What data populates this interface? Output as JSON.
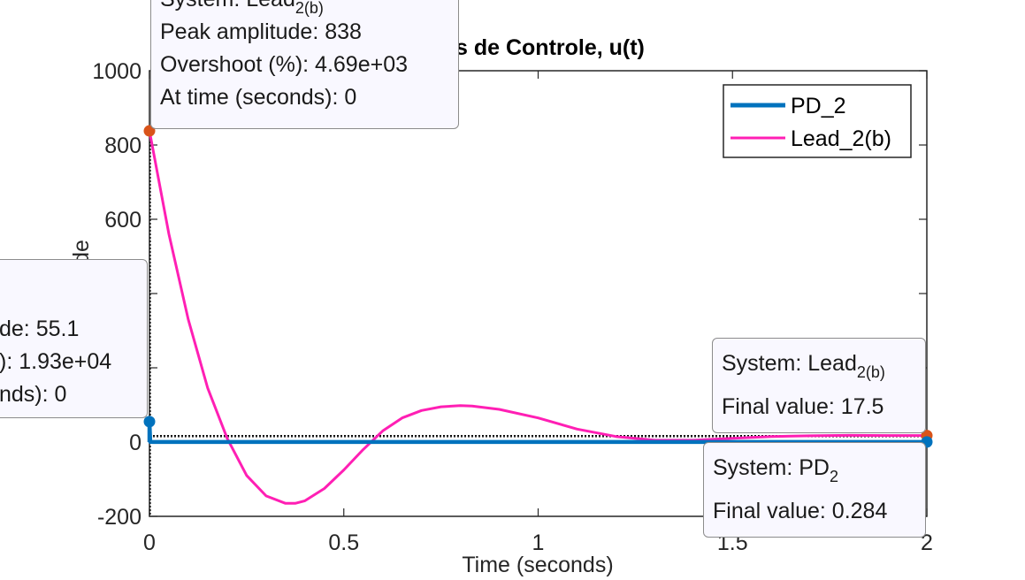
{
  "chart_data": {
    "type": "line",
    "title": "s de Controle, u(t)",
    "xlabel": "Time (seconds)",
    "ylabel": "de",
    "xlim": [
      0,
      2
    ],
    "ylim": [
      -200,
      1000
    ],
    "xticks": [
      0,
      0.5,
      1,
      1.5,
      2
    ],
    "xtick_labels": [
      "0",
      "0.5",
      "1",
      "1.5",
      "2"
    ],
    "yticks": [
      -200,
      0,
      200,
      400,
      600,
      800,
      1000
    ],
    "ytick_labels": [
      "-200",
      "0",
      "",
      "",
      "600",
      "800",
      "1000"
    ],
    "grid": false,
    "legend_position": "top-right",
    "series": [
      {
        "name": "PD_2",
        "color": "#0072bd",
        "x": [
          0,
          0,
          0.002,
          0.01,
          0.5,
          1,
          1.5,
          2
        ],
        "y": [
          0,
          55.1,
          0.5,
          0.284,
          0.284,
          0.284,
          0.284,
          0.284
        ]
      },
      {
        "name": "Lead_2(b)",
        "color": "#ff1fb4",
        "x": [
          0,
          0.05,
          0.1,
          0.15,
          0.2,
          0.25,
          0.3,
          0.35,
          0.375,
          0.4,
          0.45,
          0.5,
          0.55,
          0.6,
          0.65,
          0.7,
          0.75,
          0.8,
          0.83,
          0.9,
          1.0,
          1.1,
          1.2,
          1.3,
          1.4,
          1.5,
          1.6,
          1.7,
          1.8,
          1.9,
          2.0
        ],
        "y": [
          838,
          560,
          330,
          145,
          10,
          -90,
          -145,
          -165,
          -165,
          -158,
          -125,
          -75,
          -20,
          30,
          65,
          85,
          95,
          98,
          97,
          88,
          65,
          35,
          15,
          5,
          5,
          10,
          15,
          17,
          18,
          17.5,
          17.5
        ]
      }
    ],
    "markers": [
      {
        "series": "Lead_2(b)",
        "x": 0,
        "y": 838,
        "color": "#d95319"
      },
      {
        "series": "PD_2",
        "x": 0,
        "y": 55.1,
        "color": "#0072bd"
      },
      {
        "series": "Lead_2(b)",
        "x": 2,
        "y": 17.5,
        "color": "#d95319"
      },
      {
        "series": "PD_2",
        "x": 2,
        "y": 0.284,
        "color": "#0072bd"
      }
    ]
  },
  "tooltips": {
    "lead_peak": {
      "system_prefix": "System: Lead",
      "system_sub": "2(b)",
      "peak": "Peak amplitude: 838",
      "overshoot": "Overshoot (%): 4.69e+03",
      "time": "At time (seconds): 0"
    },
    "pd_peak": {
      "peak": "de: 55.1",
      "overshoot": "): 1.93e+04",
      "time": "nds): 0"
    },
    "lead_final": {
      "system_prefix": "System: Lead",
      "system_sub": "2(b)",
      "final": "Final value: 17.5"
    },
    "pd_final": {
      "system_prefix": "System: PD",
      "system_sub": "2",
      "final": "Final value: 0.284"
    }
  }
}
